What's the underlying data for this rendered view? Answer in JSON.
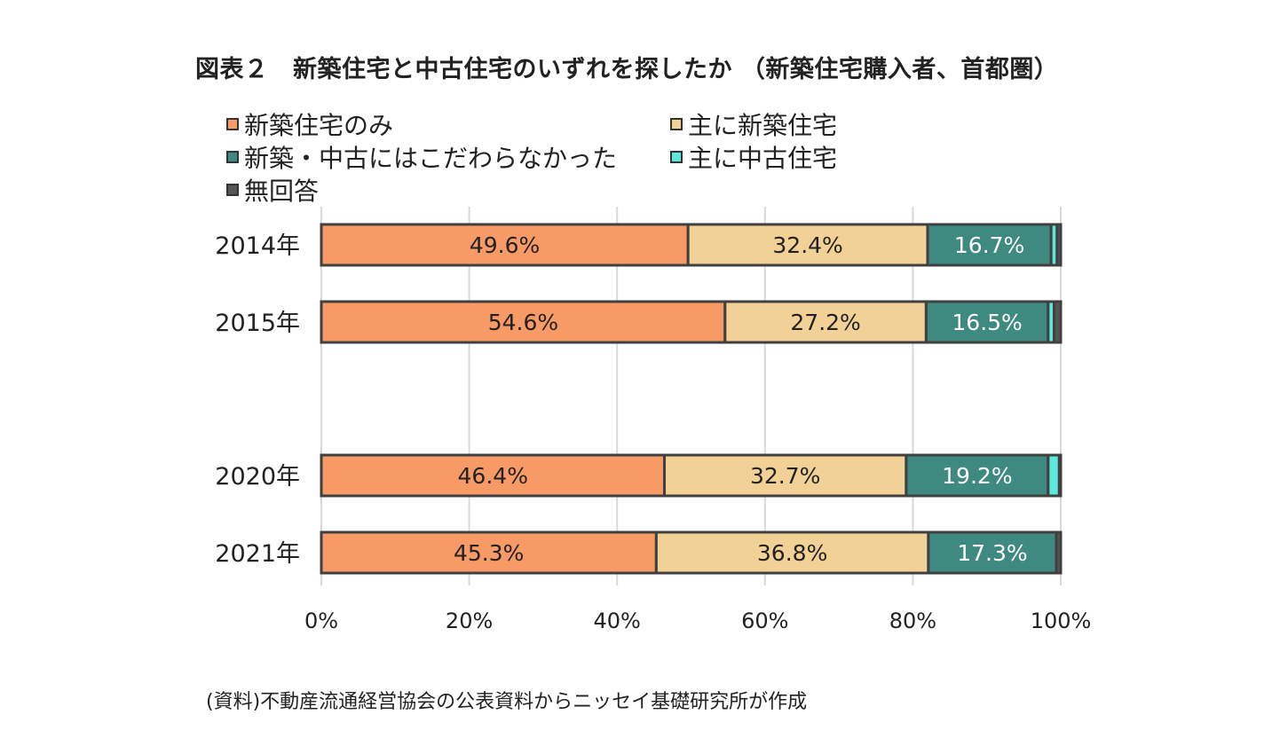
{
  "title": "図表２　新築住宅と中古住宅のいずれを探したか （新築住宅購入者、首都圏）",
  "source": "(資料)不動産流通経営協会の公表資料からニッセイ基礎研究所が作成",
  "chart_data": {
    "type": "bar",
    "orientation": "horizontal",
    "stacked": true,
    "percent_stacked": true,
    "categories": [
      "2014年",
      "2015年",
      "2020年",
      "2021年"
    ],
    "series": [
      {
        "name": "新築住宅のみ",
        "color": "#f79a65",
        "values": [
          49.6,
          54.6,
          46.4,
          45.3
        ],
        "labels": [
          "49.6%",
          "54.6%",
          "46.4%",
          "45.3%"
        ]
      },
      {
        "name": "主に新築住宅",
        "color": "#f2d196",
        "values": [
          32.4,
          27.2,
          32.7,
          36.8
        ],
        "labels": [
          "32.4%",
          "27.2%",
          "32.7%",
          "36.8%"
        ]
      },
      {
        "name": "新築・中古にはこだわらなかった",
        "color": "#3e8a80",
        "values": [
          16.7,
          16.5,
          19.2,
          17.3
        ],
        "labels": [
          "16.7%",
          "16.5%",
          "19.2%",
          "17.3%"
        ]
      },
      {
        "name": "主に中古住宅",
        "color": "#5ee8dc",
        "values": [
          0.8,
          0.8,
          1.5,
          0.0
        ]
      },
      {
        "name": "無回答",
        "color": "#555555",
        "values": [
          0.5,
          0.9,
          0.2,
          0.6
        ]
      }
    ],
    "xlim": [
      0,
      100
    ],
    "xticks": [
      "0%",
      "20%",
      "40%",
      "60%",
      "80%",
      "100%"
    ],
    "grid": true,
    "legend_position": "top"
  }
}
